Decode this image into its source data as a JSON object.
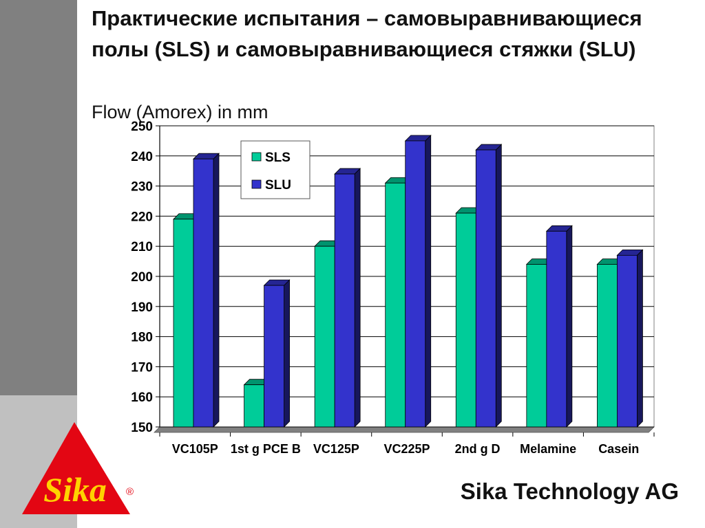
{
  "slide": {
    "title": "Практические испытания – самовыравнивающиеся полы (SLS) и самовыравнивающиеся стяжки (SLU)",
    "company": "Sika Technology AG",
    "logo_text": "Sika",
    "logo_mark": "®",
    "colors": {
      "sidebar_top": "#808080",
      "sidebar_bottom": "#c0c0c0",
      "logo_red": "#e30613",
      "logo_yellow": "#ffd200"
    }
  },
  "chart_data": {
    "type": "bar",
    "title": "Flow (Amorex) in mm",
    "categories": [
      "VC105P",
      "1st g PCE B",
      "VC125P",
      "VC225P",
      "2nd g D",
      "Melamine",
      "Casein"
    ],
    "series": [
      {
        "name": "SLS",
        "values": [
          219,
          164,
          210,
          231,
          221,
          204,
          204
        ],
        "color": "#00cc99"
      },
      {
        "name": "SLU",
        "values": [
          239,
          197,
          234,
          245,
          242,
          215,
          207
        ],
        "color": "#3333cc"
      }
    ],
    "ylim": [
      150,
      250
    ],
    "yticks": [
      150,
      160,
      170,
      180,
      190,
      200,
      210,
      220,
      230,
      240,
      250
    ],
    "grid": true,
    "legend": "top-left",
    "style": "3d"
  }
}
